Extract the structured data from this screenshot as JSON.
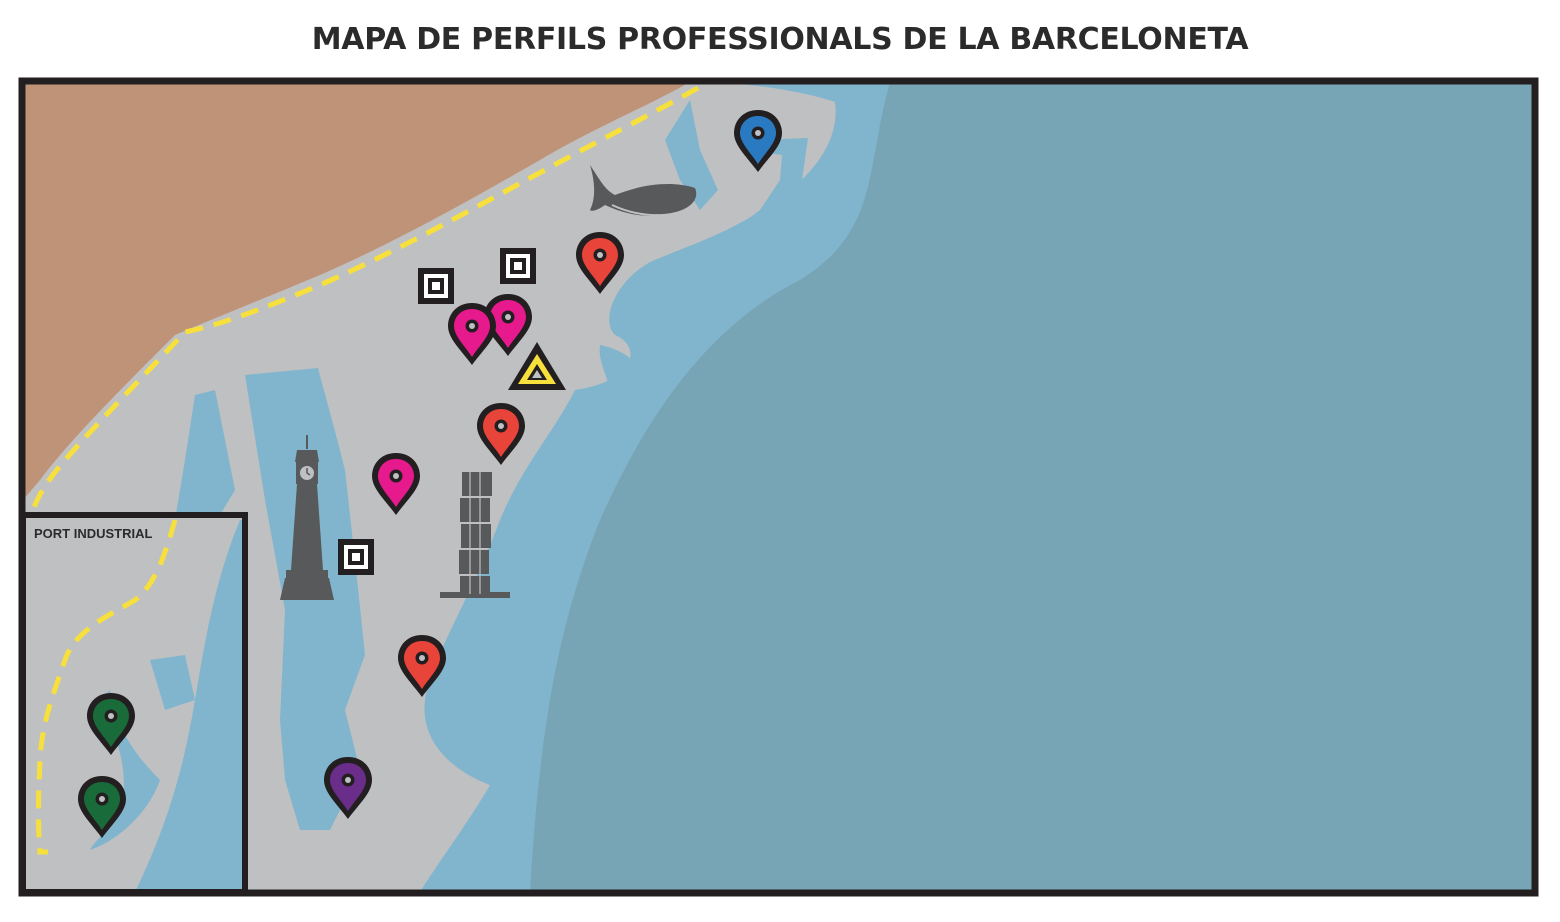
{
  "title": "MAPA DE PERFILS PROFESSIONALS DE LA BARCELONETA",
  "inset": {
    "label": "PORT INDUSTRIAL"
  },
  "colors": {
    "sea": "#77a5b6",
    "water": "#80b5cd",
    "land": "#bfc0c2",
    "city": "#bf9377",
    "frame": "#231f20",
    "dashed_path": "#f7e03c",
    "landmark": "#58595b",
    "marker_red": "#e8443a",
    "marker_magenta": "#e6198d",
    "marker_blue": "#2a7ac2",
    "marker_green": "#1a6b3a",
    "marker_purple": "#6a2d8a",
    "triangle_fill": "#f7e03c"
  },
  "markers": [
    {
      "name": "map-marker-blue",
      "color": "marker_blue",
      "icon": "map-pin-icon"
    },
    {
      "name": "map-marker-red",
      "color": "marker_red",
      "icon": "map-pin-icon"
    },
    {
      "name": "map-marker-magenta",
      "color": "marker_magenta",
      "icon": "map-pin-icon"
    },
    {
      "name": "map-marker-magenta",
      "color": "marker_magenta",
      "icon": "map-pin-icon"
    },
    {
      "name": "map-marker-red",
      "color": "marker_red",
      "icon": "map-pin-icon"
    },
    {
      "name": "map-marker-magenta",
      "color": "marker_magenta",
      "icon": "map-pin-icon"
    },
    {
      "name": "map-marker-red",
      "color": "marker_red",
      "icon": "map-pin-icon"
    },
    {
      "name": "map-marker-purple",
      "color": "marker_purple",
      "icon": "map-pin-icon"
    },
    {
      "name": "map-marker-green",
      "color": "marker_green",
      "icon": "map-pin-icon"
    },
    {
      "name": "map-marker-green",
      "color": "marker_green",
      "icon": "map-pin-icon"
    }
  ],
  "square_markers": [
    {
      "icon": "square-target-icon"
    },
    {
      "icon": "square-target-icon"
    },
    {
      "icon": "square-target-icon"
    }
  ],
  "triangle_marker": {
    "icon": "warning-triangle-icon"
  },
  "landmarks": [
    {
      "icon": "fish-sculpture-icon"
    },
    {
      "icon": "clock-tower-icon"
    },
    {
      "icon": "stacked-cubes-sculpture-icon"
    }
  ]
}
